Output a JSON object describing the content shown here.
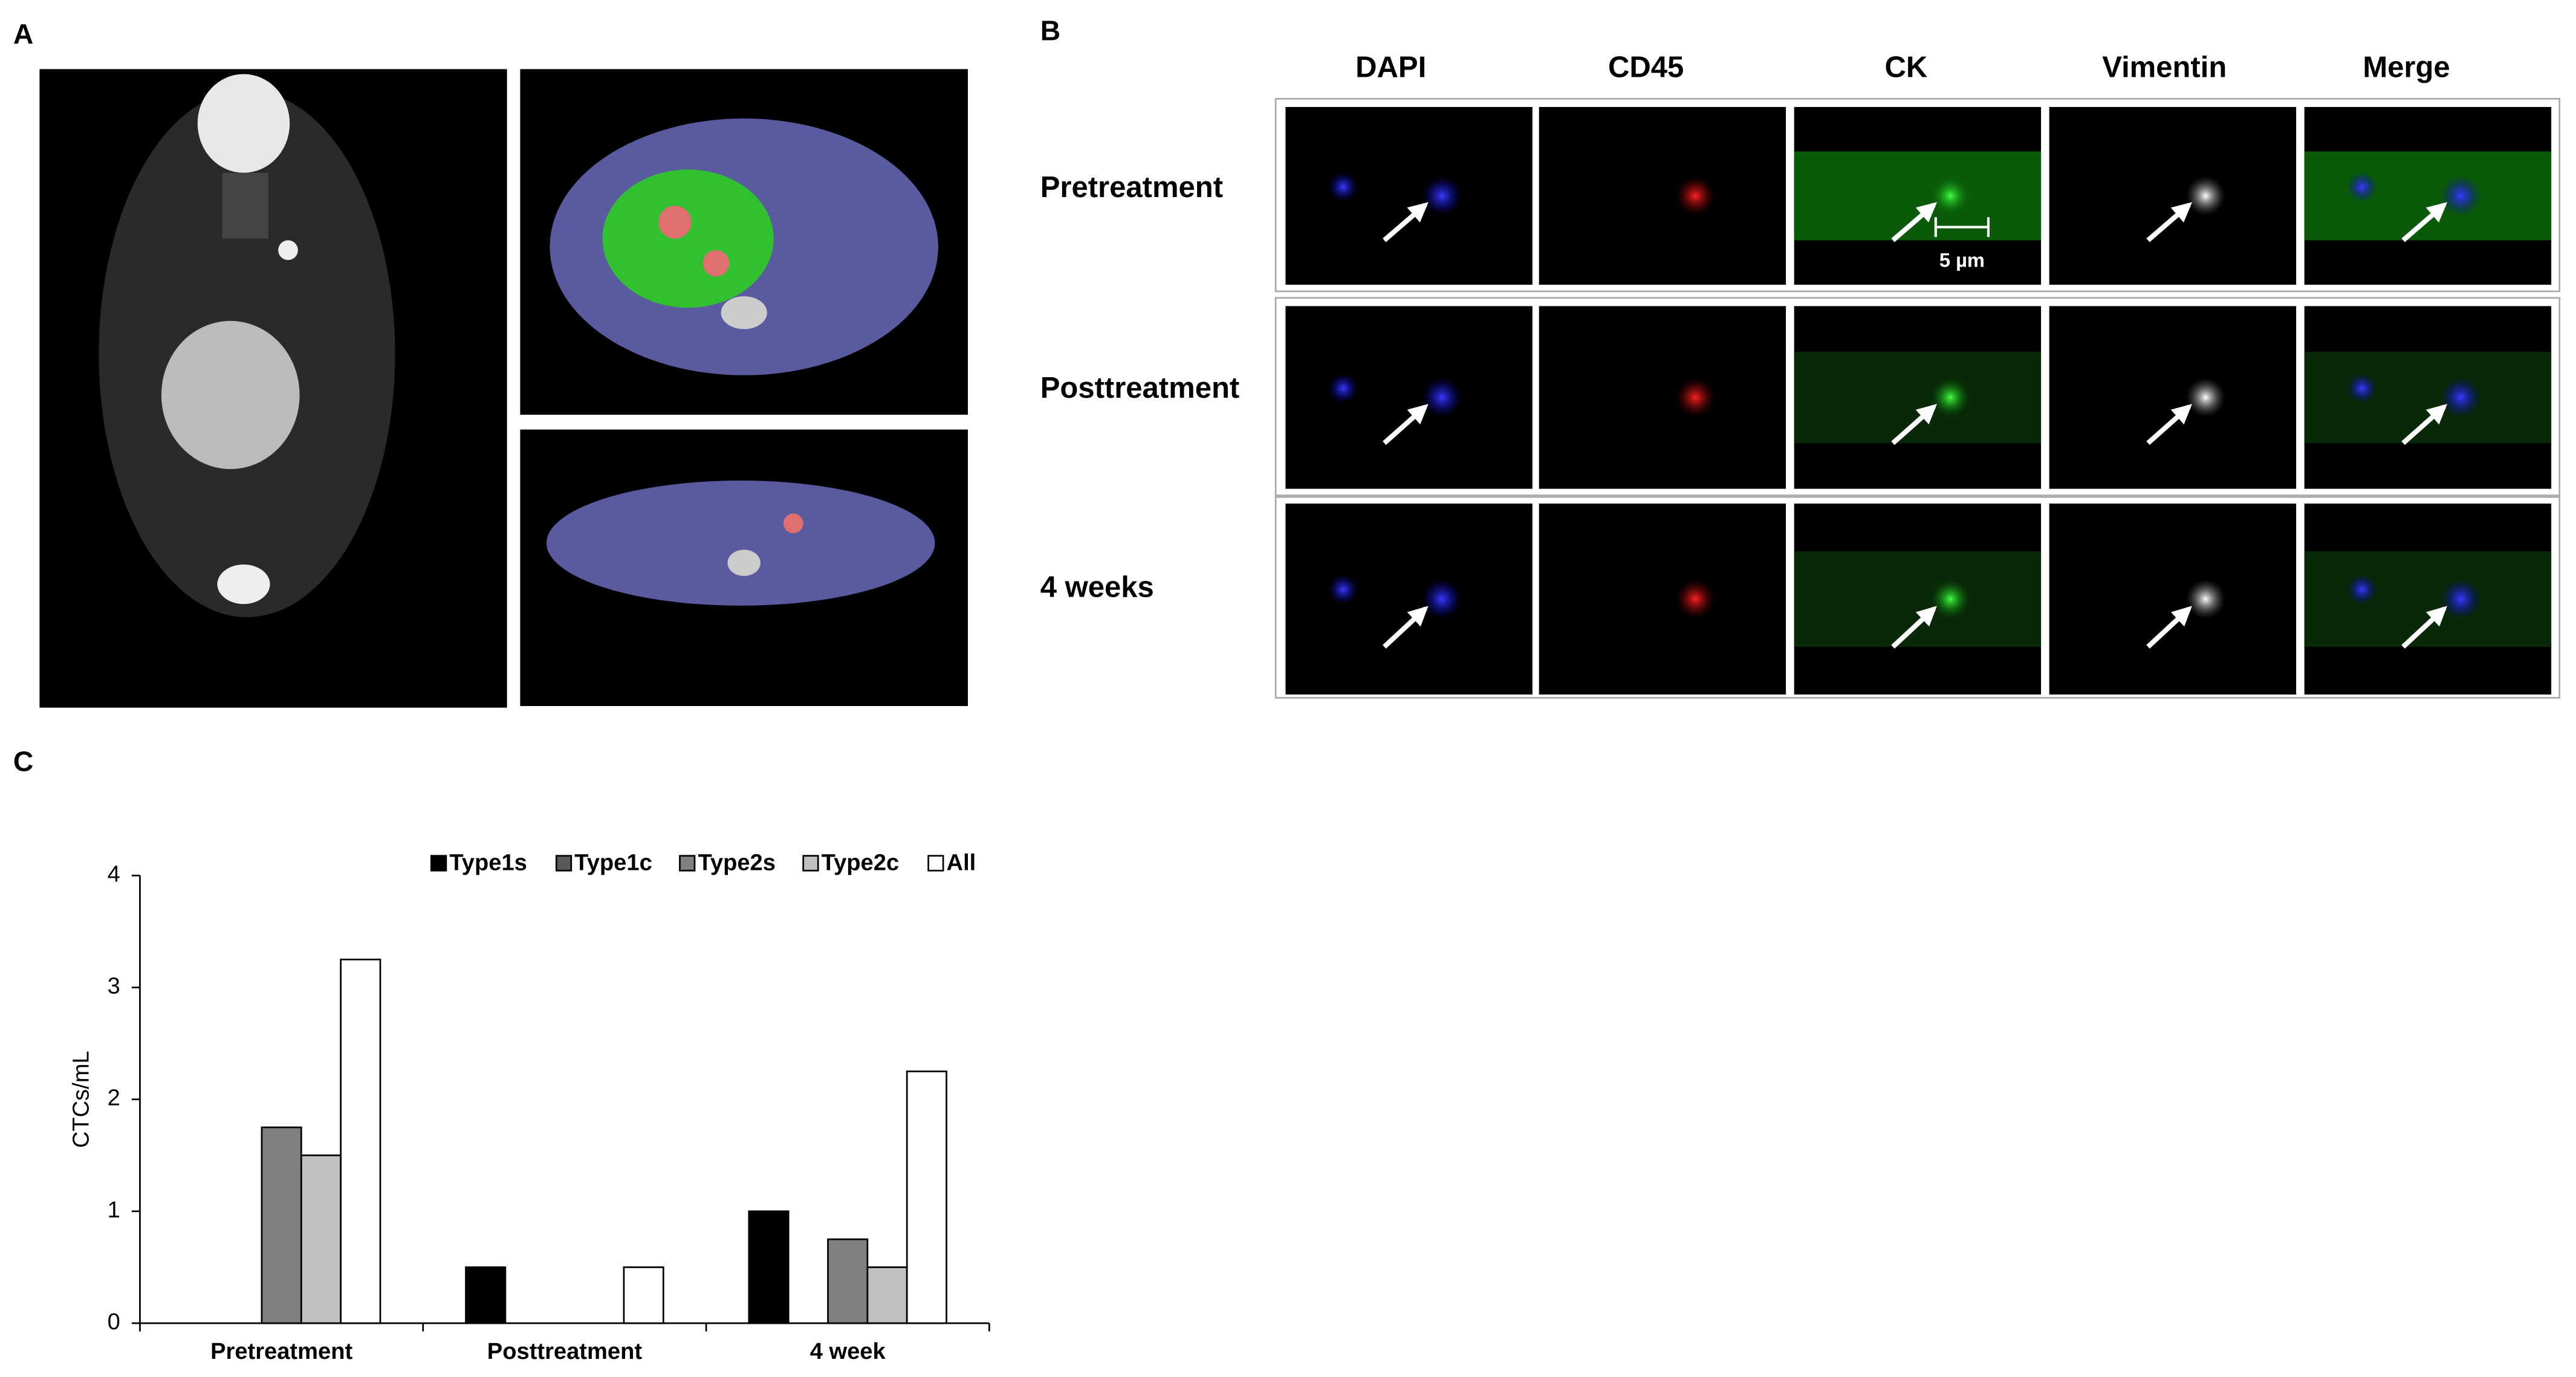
{
  "panel_labels": [
    "A",
    "B",
    "C"
  ],
  "panel_b": {
    "columns": [
      "DAPI",
      "CD45",
      "CK",
      "Vimentin",
      "Merge"
    ],
    "rows": [
      "Pretreatment",
      "Posttreatment",
      "4 weeks"
    ],
    "scale_bar": "5 µm"
  },
  "chart_data": {
    "type": "bar",
    "ylabel": "CTCs/mL",
    "categories": [
      "Pretreatment",
      "Posttreatment",
      "4 week"
    ],
    "series": [
      {
        "name": "Type1s",
        "color": "#000000",
        "values": [
          0,
          0.5,
          1
        ]
      },
      {
        "name": "Type1c",
        "color": "#595959",
        "values": [
          0,
          0,
          0
        ]
      },
      {
        "name": "Type2s",
        "color": "#808080",
        "values": [
          1.75,
          0,
          0.75
        ]
      },
      {
        "name": "Type2c",
        "color": "#c0c0c0",
        "values": [
          1.5,
          0,
          0.5
        ]
      },
      {
        "name": "All",
        "color": "#ffffff",
        "values": [
          3.25,
          0.5,
          2.25
        ]
      }
    ],
    "ylim": [
      0,
      4
    ],
    "yticks": [
      0,
      1,
      2,
      3,
      4
    ],
    "legend": "top"
  }
}
